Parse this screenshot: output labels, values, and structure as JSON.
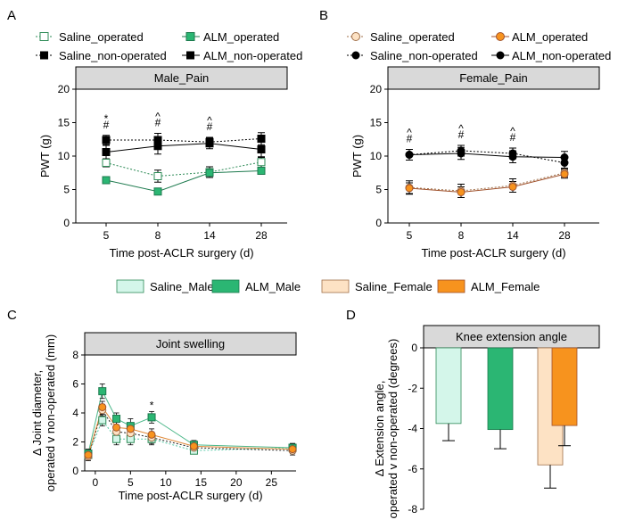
{
  "chart_data": [
    {
      "panel": "A",
      "type": "line",
      "title": "Male_Pain",
      "xlabel": "Time post-ACLR surgery (d)",
      "ylabel": "PWT (g)",
      "categories": [
        "5",
        "8",
        "14",
        "28"
      ],
      "yticks": [
        "0",
        "5",
        "10",
        "15",
        "20"
      ],
      "ylim": [
        0,
        20
      ],
      "series": [
        {
          "name": "Saline_operated",
          "values": [
            9.0,
            7.0,
            7.6,
            9.1
          ],
          "err": [
            0.6,
            0.9,
            0.8,
            0.8
          ],
          "fill": "#ffffff",
          "stroke": "#2e8b57",
          "dash": true,
          "shape": "square"
        },
        {
          "name": "ALM_operated",
          "values": [
            6.4,
            4.7,
            7.5,
            7.8
          ],
          "err": [
            0.5,
            0.5,
            0.4,
            0.4
          ],
          "fill": "#2bb673",
          "stroke": "#1d7a4e",
          "dash": false,
          "shape": "square"
        },
        {
          "name": "Saline_non-operated",
          "values": [
            12.4,
            12.4,
            12.1,
            12.6
          ],
          "err": [
            0.7,
            1.0,
            0.7,
            0.9
          ],
          "fill": "#000000",
          "stroke": "#000000",
          "dash": true,
          "shape": "square"
        },
        {
          "name": "ALM_non-operated",
          "values": [
            10.6,
            11.5,
            11.9,
            11.0
          ],
          "err": [
            1.0,
            1.2,
            0.8,
            1.2
          ],
          "fill": "#000000",
          "stroke": "#000000",
          "dash": false,
          "shape": "square"
        }
      ],
      "annotations": [
        {
          "x": "5",
          "lines": [
            "*",
            "#"
          ]
        },
        {
          "x": "8",
          "lines": [
            "^",
            "#"
          ]
        },
        {
          "x": "14",
          "lines": [
            "^",
            "#"
          ]
        }
      ]
    },
    {
      "panel": "B",
      "type": "line",
      "title": "Female_Pain",
      "xlabel": "Time post-ACLR surgery (d)",
      "ylabel": "PWT (g)",
      "categories": [
        "5",
        "8",
        "14",
        "28"
      ],
      "yticks": [
        "0",
        "5",
        "10",
        "15",
        "20"
      ],
      "ylim": [
        0,
        20
      ],
      "series": [
        {
          "name": "Saline_operated",
          "values": [
            5.3,
            4.8,
            5.6,
            7.5
          ],
          "err": [
            1.0,
            1.0,
            1.0,
            0.6
          ],
          "fill": "#fde2c4",
          "stroke": "#a0704a",
          "dash": true,
          "shape": "circle"
        },
        {
          "name": "ALM_operated",
          "values": [
            5.2,
            4.6,
            5.4,
            7.3
          ],
          "err": [
            0.8,
            0.8,
            0.8,
            0.6
          ],
          "fill": "#f7931e",
          "stroke": "#a0522d",
          "dash": false,
          "shape": "circle"
        },
        {
          "name": "Saline_non-operated",
          "values": [
            10.2,
            10.8,
            10.4,
            9.0
          ],
          "err": [
            0.8,
            0.8,
            0.8,
            0.8
          ],
          "fill": "#000000",
          "stroke": "#000000",
          "dash": true,
          "shape": "circle"
        },
        {
          "name": "ALM_non-operated",
          "values": [
            10.2,
            10.4,
            9.9,
            9.8
          ],
          "err": [
            0.8,
            0.9,
            0.9,
            0.9
          ],
          "fill": "#000000",
          "stroke": "#000000",
          "dash": false,
          "shape": "circle"
        }
      ],
      "annotations": [
        {
          "x": "5",
          "lines": [
            "^",
            "#"
          ]
        },
        {
          "x": "8",
          "lines": [
            "^",
            "#"
          ]
        },
        {
          "x": "14",
          "lines": [
            "^",
            "#"
          ]
        }
      ]
    },
    {
      "panel": "C",
      "type": "line",
      "title": "Joint swelling",
      "xlabel": "Time post-ACLR surgery (d)",
      "ylabel": "Δ Joint diameter, operated v non-operated (mm)",
      "x": [
        -1,
        1,
        3,
        5,
        8,
        14,
        28
      ],
      "xticks": [
        "0",
        "5",
        "10",
        "15",
        "20",
        "25"
      ],
      "yticks": [
        "0",
        "2",
        "4",
        "6",
        "8"
      ],
      "xlim": [
        -1.5,
        28.5
      ],
      "ylim": [
        0,
        8
      ],
      "series": [
        {
          "name": "Saline_Male",
          "values": [
            1.1,
            3.5,
            2.2,
            2.2,
            2.2,
            1.4,
            1.6
          ],
          "err": [
            0.3,
            0.4,
            0.4,
            0.4,
            0.4,
            0.2,
            0.2
          ],
          "fill": "#d4f6ea",
          "stroke": "#2e8b57",
          "dash": true
        },
        {
          "name": "ALM_Male",
          "values": [
            1.2,
            5.5,
            3.6,
            3.1,
            3.7,
            1.8,
            1.6
          ],
          "err": [
            0.3,
            0.5,
            0.4,
            0.5,
            0.4,
            0.3,
            0.3
          ],
          "fill": "#2bb673",
          "stroke": "#1d7a4e",
          "dash": false
        },
        {
          "name": "Saline_Female",
          "values": [
            1.0,
            4.2,
            2.7,
            2.6,
            2.3,
            1.6,
            1.4
          ],
          "err": [
            0.3,
            0.4,
            0.4,
            0.4,
            0.4,
            0.3,
            0.3
          ],
          "fill": "#fde2c4",
          "stroke": "#a0704a",
          "dash": true
        },
        {
          "name": "ALM_Female",
          "values": [
            1.1,
            4.4,
            3.0,
            2.9,
            2.5,
            1.7,
            1.5
          ],
          "err": [
            0.3,
            0.4,
            0.4,
            0.4,
            0.4,
            0.3,
            0.3
          ],
          "fill": "#f7931e",
          "stroke": "#a0522d",
          "dash": false
        }
      ],
      "annotations": [
        {
          "x": "8",
          "lines": [
            "*"
          ]
        }
      ]
    },
    {
      "panel": "D",
      "type": "bar",
      "title": "Knee extension angle",
      "xlabel": "",
      "ylabel": "Δ Extension angle, operated v non-operated (degrees)",
      "categories": [
        "Saline_Male",
        "ALM_Male",
        "Saline_Female",
        "ALM_Female"
      ],
      "values": [
        -3.75,
        -4.05,
        -5.8,
        -3.85
      ],
      "err": [
        0.85,
        0.95,
        1.15,
        1.0
      ],
      "colors": [
        "#d4f6ea",
        "#2bb673",
        "#fde2c4",
        "#f7931e"
      ],
      "yticks": [
        "0",
        "-2",
        "-4",
        "-6",
        "-8"
      ],
      "ylim": [
        -8,
        0
      ]
    }
  ],
  "legends": {
    "top_left": [
      "Saline_operated",
      "ALM_operated",
      "Saline_non-operated",
      "ALM_non-operated"
    ],
    "top_right": [
      "Saline_operated",
      "ALM_operated",
      "Saline_non-operated",
      "ALM_non-operated"
    ],
    "middle": [
      {
        "label": "Saline_Male",
        "color": "#d4f6ea"
      },
      {
        "label": "ALM_Male",
        "color": "#2bb673"
      },
      {
        "label": "Saline_Female",
        "color": "#fde2c4"
      },
      {
        "label": "ALM_Female",
        "color": "#f7931e"
      }
    ]
  },
  "panel_labels": [
    "A",
    "B",
    "C",
    "D"
  ]
}
